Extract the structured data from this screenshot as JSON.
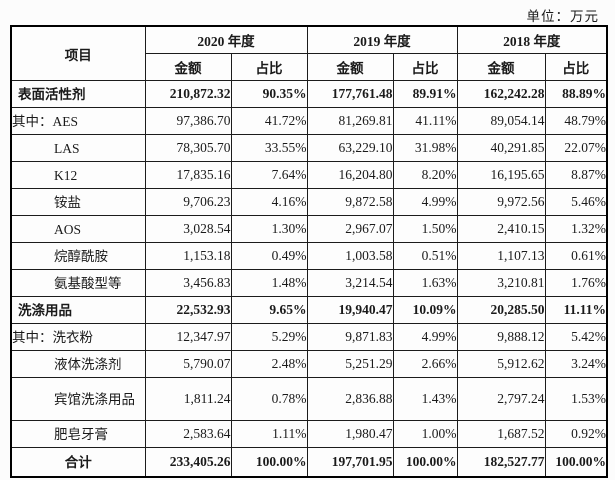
{
  "unit_label": "单位：万元",
  "table": {
    "item_header": "项目",
    "year_headers": [
      "2020 年度",
      "2019 年度",
      "2018 年度"
    ],
    "amount_header": "金额",
    "share_header": "占比",
    "rows": [
      {
        "label": "表面活性剂",
        "style": "section",
        "values": [
          "210,872.32",
          "90.35%",
          "177,761.48",
          "89.91%",
          "162,242.28",
          "88.89%"
        ]
      },
      {
        "label": "其中：AES",
        "style": "first-sub",
        "values": [
          "97,386.70",
          "41.72%",
          "81,269.81",
          "41.11%",
          "89,054.14",
          "48.79%"
        ]
      },
      {
        "label": "LAS",
        "style": "sub",
        "values": [
          "78,305.70",
          "33.55%",
          "63,229.10",
          "31.98%",
          "40,291.85",
          "22.07%"
        ]
      },
      {
        "label": "K12",
        "style": "sub",
        "values": [
          "17,835.16",
          "7.64%",
          "16,204.80",
          "8.20%",
          "16,195.65",
          "8.87%"
        ]
      },
      {
        "label": "铵盐",
        "style": "sub",
        "values": [
          "9,706.23",
          "4.16%",
          "9,872.58",
          "4.99%",
          "9,972.56",
          "5.46%"
        ]
      },
      {
        "label": "AOS",
        "style": "sub",
        "values": [
          "3,028.54",
          "1.30%",
          "2,967.07",
          "1.50%",
          "2,410.15",
          "1.32%"
        ]
      },
      {
        "label": "烷醇酰胺",
        "style": "sub",
        "values": [
          "1,153.18",
          "0.49%",
          "1,003.58",
          "0.51%",
          "1,107.13",
          "0.61%"
        ]
      },
      {
        "label": "氨基酸型等",
        "style": "sub",
        "values": [
          "3,456.83",
          "1.48%",
          "3,214.54",
          "1.63%",
          "3,210.81",
          "1.76%"
        ]
      },
      {
        "label": "洗涤用品",
        "style": "section",
        "values": [
          "22,532.93",
          "9.65%",
          "19,940.47",
          "10.09%",
          "20,285.50",
          "11.11%"
        ]
      },
      {
        "label": "其中：洗衣粉",
        "style": "first-sub",
        "values": [
          "12,347.97",
          "5.29%",
          "9,871.83",
          "4.99%",
          "9,888.12",
          "5.42%"
        ]
      },
      {
        "label": "液体洗涤剂",
        "style": "sub",
        "values": [
          "5,790.07",
          "2.48%",
          "5,251.29",
          "2.66%",
          "5,912.62",
          "3.24%"
        ]
      },
      {
        "label": "宾馆洗涤用品",
        "style": "sub",
        "tall": true,
        "values": [
          "1,811.24",
          "0.78%",
          "2,836.88",
          "1.43%",
          "2,797.24",
          "1.53%"
        ]
      },
      {
        "label": "肥皂牙膏",
        "style": "sub",
        "values": [
          "2,583.64",
          "1.11%",
          "1,980.47",
          "1.00%",
          "1,687.52",
          "0.92%"
        ]
      },
      {
        "label": "合计",
        "style": "total",
        "values": [
          "233,405.26",
          "100.00%",
          "197,701.95",
          "100.00%",
          "182,527.77",
          "100.00%"
        ]
      }
    ]
  },
  "colors": {
    "text": "#1a1a1a",
    "border": "#000000",
    "background": "#fcfcfc"
  }
}
